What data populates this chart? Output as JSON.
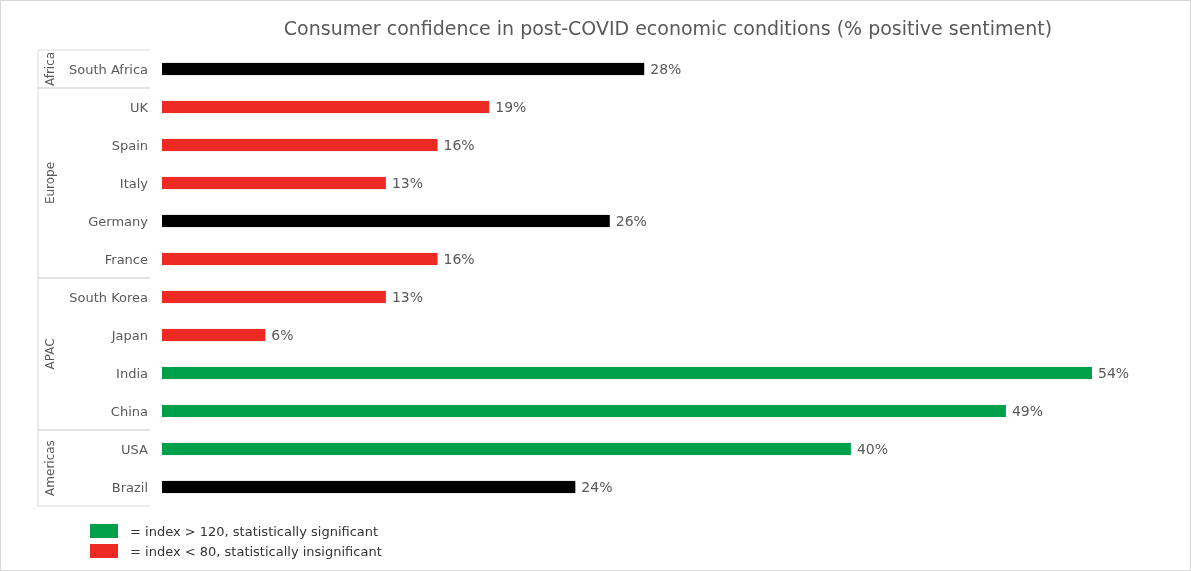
{
  "chart_data": {
    "type": "bar",
    "orientation": "horizontal",
    "stacked": true,
    "title": "Consumer confidence in post-COVID economic conditions (% positive sentiment)",
    "categories": [
      "South Africa",
      "UK",
      "Spain",
      "Italy",
      "Germany",
      "France",
      "South Korea",
      "Japan",
      "India",
      "China",
      "USA",
      "Brazil"
    ],
    "series": [
      {
        "color": "#000000",
        "values": [
          28,
          null,
          null,
          null,
          26,
          null,
          null,
          null,
          null,
          null,
          null,
          24
        ],
        "value_labels": [
          "28%",
          null,
          null,
          null,
          "26%",
          null,
          null,
          null,
          null,
          null,
          null,
          "24%"
        ]
      },
      {
        "name": "= index < 80, statistically insignificant",
        "color": "#ee2a24",
        "values": [
          null,
          19,
          16,
          13,
          null,
          16,
          13,
          6,
          null,
          null,
          null,
          null
        ],
        "value_labels": [
          null,
          "19%",
          "16%",
          "13%",
          null,
          "16%",
          "13%",
          "6%",
          null,
          null,
          null,
          null
        ]
      },
      {
        "name": "= index > 120, statistically significant",
        "color": "#00a04a",
        "values": [
          null,
          null,
          null,
          null,
          null,
          null,
          null,
          null,
          54,
          49,
          40,
          null
        ],
        "value_labels": [
          null,
          null,
          null,
          null,
          null,
          null,
          null,
          null,
          "54%",
          "49%",
          "40%",
          null
        ]
      }
    ],
    "annotations": [
      "Africa",
      "Europe",
      "APAC",
      "Americas"
    ],
    "legend": "bottom left"
  }
}
